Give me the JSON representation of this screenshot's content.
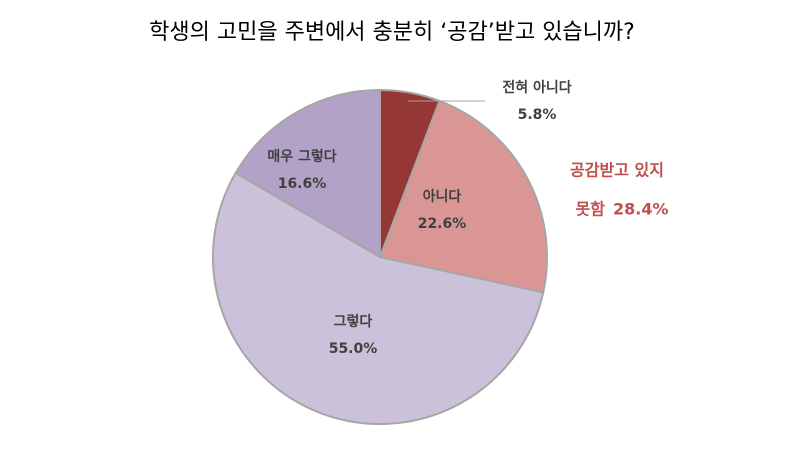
{
  "chart_data": {
    "type": "pie",
    "title": "학생의 고민을 주변에서 충분히 ‘공감’받고 있습니까?",
    "categories": [
      "전혀 아니다",
      "아니다",
      "그렇다",
      "매우 그렇다"
    ],
    "values": [
      5.8,
      22.6,
      55.0,
      16.6
    ],
    "value_labels": [
      "5.8%",
      "22.6%",
      "55.0%",
      "16.6%"
    ],
    "colors": [
      "#953735",
      "#d99694",
      "#ccc1da",
      "#b3a2c7"
    ],
    "annotation": {
      "text_lines": [
        "공감받고 있지",
        "못함"
      ],
      "value": 28.4,
      "value_label": "28.4%",
      "color": "#c0504d"
    }
  }
}
